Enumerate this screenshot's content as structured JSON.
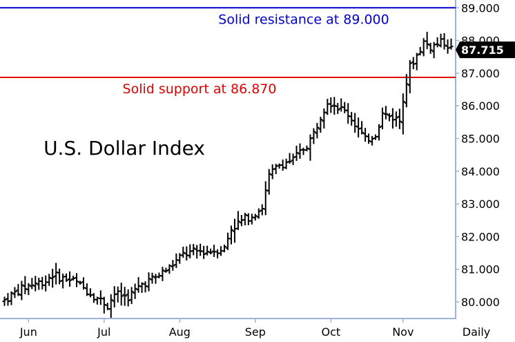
{
  "chart_data": {
    "type": "ohlc",
    "title": "U.S. Dollar Index",
    "period_label": "Daily",
    "y_ticks": [
      80.0,
      81.0,
      82.0,
      83.0,
      84.0,
      85.0,
      86.0,
      87.0,
      88.0,
      89.0
    ],
    "y_tick_labels": [
      "80.000",
      "81.000",
      "82.000",
      "83.000",
      "84.000",
      "85.000",
      "86.000",
      "87.000",
      "88.000",
      "89.000"
    ],
    "ylim": [
      79.7,
      89.2
    ],
    "x_labels": [
      "Jun",
      "Jul",
      "Aug",
      "Sep",
      "Oct",
      "Nov"
    ],
    "x_label_bar_index": [
      7,
      29,
      51,
      73,
      95,
      116
    ],
    "last_value": 87.715,
    "last_value_label": "87.715",
    "resistance": {
      "value": 89.0,
      "label": "Solid resistance at 89.000",
      "color": "#0000c8"
    },
    "support": {
      "value": 86.87,
      "label": "Solid support at 86.870",
      "color": "#e00000"
    },
    "close_path": [
      [
        0,
        80.05
      ],
      [
        4,
        80.35
      ],
      [
        8,
        80.55
      ],
      [
        12,
        80.65
      ],
      [
        14,
        80.85
      ],
      [
        16,
        80.75
      ],
      [
        20,
        80.65
      ],
      [
        24,
        80.35
      ],
      [
        28,
        80.05
      ],
      [
        30,
        79.9
      ],
      [
        32,
        80.25
      ],
      [
        36,
        80.15
      ],
      [
        40,
        80.55
      ],
      [
        44,
        80.75
      ],
      [
        48,
        81.05
      ],
      [
        52,
        81.45
      ],
      [
        56,
        81.55
      ],
      [
        60,
        81.55
      ],
      [
        64,
        81.65
      ],
      [
        66,
        82.25
      ],
      [
        70,
        82.55
      ],
      [
        72,
        82.65
      ],
      [
        75,
        82.9
      ],
      [
        77,
        83.85
      ],
      [
        80,
        84.2
      ],
      [
        84,
        84.35
      ],
      [
        88,
        84.8
      ],
      [
        90,
        85.15
      ],
      [
        92,
        85.7
      ],
      [
        94,
        86.15
      ],
      [
        96,
        86.05
      ],
      [
        98,
        85.9
      ],
      [
        100,
        85.75
      ],
      [
        102,
        85.45
      ],
      [
        105,
        84.95
      ],
      [
        108,
        85.15
      ],
      [
        110,
        85.75
      ],
      [
        113,
        85.65
      ],
      [
        115,
        85.55
      ],
      [
        116,
        86.25
      ],
      [
        118,
        87.2
      ],
      [
        120,
        87.55
      ],
      [
        122,
        87.95
      ],
      [
        124,
        87.8
      ],
      [
        126,
        87.9
      ],
      [
        128,
        87.95
      ],
      [
        130,
        87.75
      ]
    ],
    "colors": {
      "bars": "#000000",
      "axis": "#9fb1dc",
      "last_value_bg": "#000000"
    }
  }
}
